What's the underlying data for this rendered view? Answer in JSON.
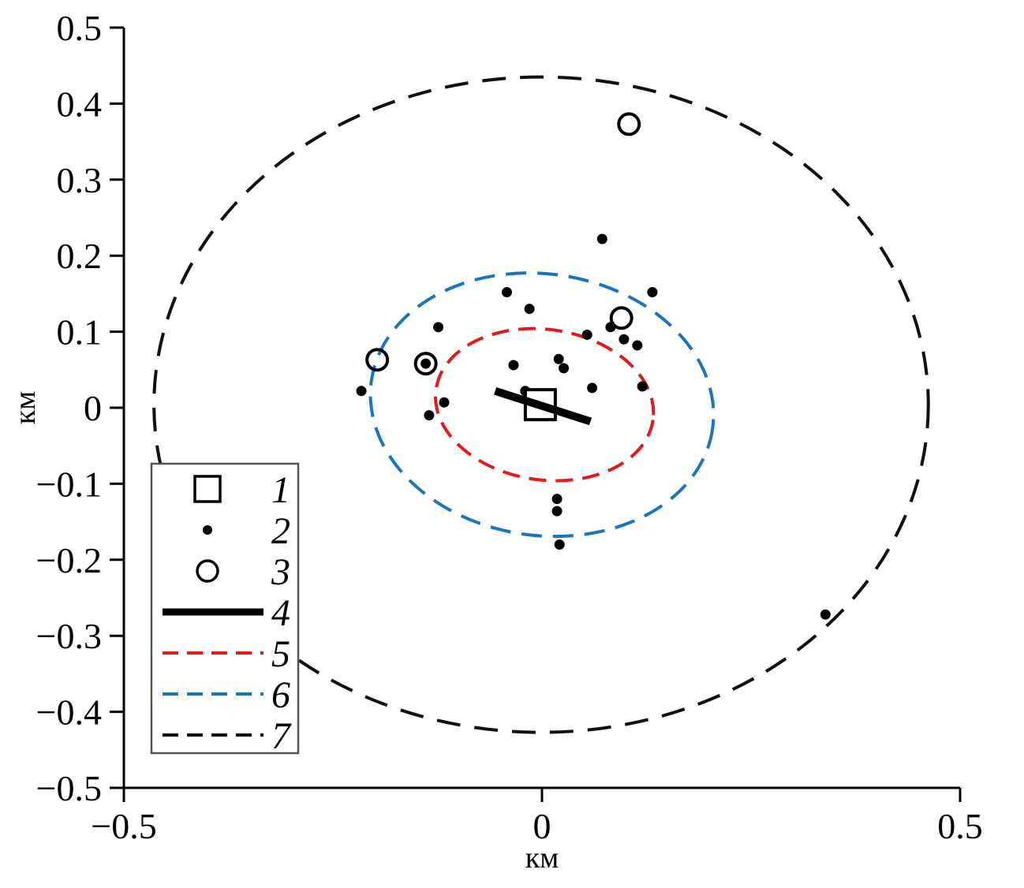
{
  "figure": {
    "background": "#ffffff",
    "ink": "#000000",
    "legend_border": "#555555"
  },
  "chart_data": {
    "type": "scatter",
    "title": "",
    "xlabel": "км",
    "ylabel": "км",
    "xlim": [
      -0.5,
      0.5
    ],
    "ylim": [
      -0.5,
      0.5
    ],
    "grid": false,
    "legend_position": "lower-left",
    "x_ticks": [
      {
        "value": -0.5,
        "label": "−0.5"
      },
      {
        "value": 0,
        "label": "0"
      },
      {
        "value": 0.5,
        "label": "0.5"
      }
    ],
    "y_ticks": [
      {
        "value": 0.5,
        "label": "0.5"
      },
      {
        "value": 0.4,
        "label": "0.4"
      },
      {
        "value": 0.3,
        "label": "0.3"
      },
      {
        "value": 0.2,
        "label": "0.2"
      },
      {
        "value": 0.1,
        "label": "0.1"
      },
      {
        "value": 0,
        "label": "0"
      },
      {
        "value": -0.1,
        "label": "−0.1"
      },
      {
        "value": -0.2,
        "label": "−0.2"
      },
      {
        "value": -0.3,
        "label": "−0.3"
      },
      {
        "value": -0.4,
        "label": "−0.4"
      },
      {
        "value": -0.5,
        "label": "−0.5"
      }
    ],
    "series": [
      {
        "legend_label": "1",
        "name": "epicenter-square",
        "marker": "open-square",
        "color": "#000000",
        "points": [
          {
            "x": -0.002,
            "y": 0.004
          }
        ]
      },
      {
        "legend_label": "2",
        "name": "small-event-dots",
        "marker": "dot",
        "color": "#000000",
        "points": [
          {
            "x": 0.072,
            "y": 0.222
          },
          {
            "x": 0.132,
            "y": 0.152
          },
          {
            "x": -0.042,
            "y": 0.152
          },
          {
            "x": -0.015,
            "y": 0.13
          },
          {
            "x": -0.124,
            "y": 0.106
          },
          {
            "x": 0.054,
            "y": 0.096
          },
          {
            "x": 0.082,
            "y": 0.106
          },
          {
            "x": 0.098,
            "y": 0.09
          },
          {
            "x": 0.114,
            "y": 0.082
          },
          {
            "x": -0.034,
            "y": 0.056
          },
          {
            "x": 0.02,
            "y": 0.064
          },
          {
            "x": 0.026,
            "y": 0.052
          },
          {
            "x": -0.139,
            "y": 0.058
          },
          {
            "x": -0.216,
            "y": 0.022
          },
          {
            "x": 0.06,
            "y": 0.026
          },
          {
            "x": -0.02,
            "y": 0.022
          },
          {
            "x": -0.135,
            "y": -0.01
          },
          {
            "x": -0.117,
            "y": 0.007
          },
          {
            "x": 0.12,
            "y": 0.028
          },
          {
            "x": 0.018,
            "y": -0.12
          },
          {
            "x": 0.018,
            "y": -0.136
          },
          {
            "x": 0.021,
            "y": -0.18
          },
          {
            "x": 0.339,
            "y": -0.272
          }
        ]
      },
      {
        "legend_label": "3",
        "name": "large-event-circles",
        "marker": "open-circle",
        "color": "#000000",
        "points": [
          {
            "x": 0.104,
            "y": 0.373
          },
          {
            "x": 0.095,
            "y": 0.118
          },
          {
            "x": -0.197,
            "y": 0.063
          },
          {
            "x": -0.139,
            "y": 0.058
          }
        ]
      },
      {
        "legend_label": "4",
        "name": "fault-segment",
        "marker": "thick-line",
        "color": "#000000",
        "segment": {
          "x1": -0.056,
          "y1": 0.022,
          "x2": 0.058,
          "y2": -0.018
        }
      },
      {
        "legend_label": "5",
        "name": "inner-contour",
        "marker": "dashed-ellipse",
        "color": "#e31a1c",
        "dash": "22 12",
        "ellipse": {
          "cx": 0.003,
          "cy": 0.004,
          "rx": 0.131,
          "ry": 0.099,
          "tilt_deg": 8
        }
      },
      {
        "legend_label": "6",
        "name": "middle-contour",
        "marker": "dashed-ellipse",
        "color": "#1b75bc",
        "dash": "26 14",
        "ellipse": {
          "cx": 0.0,
          "cy": 0.004,
          "rx": 0.206,
          "ry": 0.172,
          "tilt_deg": 8
        }
      },
      {
        "legend_label": "7",
        "name": "outer-contour",
        "marker": "dashed-ellipse",
        "color": "#111111",
        "dash": "30 18",
        "ellipse": {
          "cx": -0.001,
          "cy": 0.004,
          "rx": 0.463,
          "ry": 0.431,
          "tilt_deg": 0
        }
      }
    ]
  }
}
